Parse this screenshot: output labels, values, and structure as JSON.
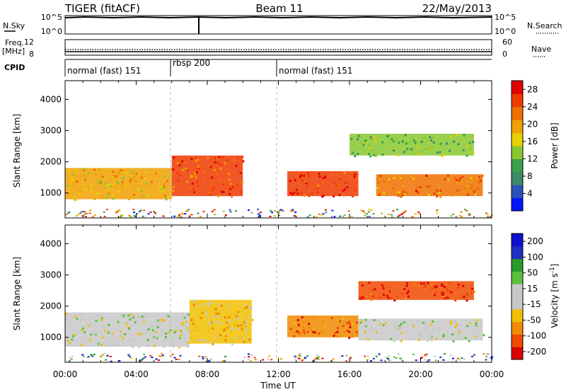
{
  "header": {
    "station": "TIGER (fitACF)",
    "beam": "Beam 11",
    "date": "22/May/2013"
  },
  "strips": {
    "nsky_label": "N.Sky",
    "nsky_ticks": [
      "10^5",
      "10^0"
    ],
    "nsearch_label": "N.Search",
    "nsearch_ticks": [
      "10^5",
      "10^0"
    ],
    "freq_label_1": "Freq.",
    "freq_label_2": "[MHz]",
    "freq_ticks": [
      "12",
      "8"
    ],
    "nave_label": "Nave",
    "nave_ticks": [
      "60",
      "0"
    ],
    "cpid_label": "CPID",
    "cpid_segments": [
      {
        "label": "normal (fast) 151",
        "start_hour": 0,
        "end_hour": 6
      },
      {
        "label": "rbsp 200",
        "start_hour": 6,
        "end_hour": 12
      },
      {
        "label": "normal (fast) 151",
        "start_hour": 12,
        "end_hour": 24
      }
    ]
  },
  "x_axis": {
    "label": "Time UT",
    "ticks": [
      "00:00",
      "04:00",
      "08:00",
      "12:00",
      "16:00",
      "20:00",
      "00:00"
    ],
    "range_hours": [
      0,
      24
    ]
  },
  "colors": {
    "power_scale": [
      "#0016ff",
      "#2a52b8",
      "#3a8a6a",
      "#3aa04a",
      "#8ac830",
      "#e8d000",
      "#f0a000",
      "#f07000",
      "#ee3a00",
      "#e00000"
    ],
    "velocity_scale": [
      "#e00000",
      "#f04a00",
      "#f08a00",
      "#f0c000",
      "#c8c8c8",
      "#c8c8c8",
      "#5ac040",
      "#2a9a2a",
      "#2030c0",
      "#1010d0"
    ]
  },
  "chart_data": [
    {
      "type": "heatmap",
      "panel": "power",
      "ylabel": "Slant Range [km]",
      "yticks": [
        1000,
        2000,
        3000,
        4000
      ],
      "ylim": [
        200,
        4600
      ],
      "xlim": [
        0,
        24
      ],
      "colorbar_label": "Power [dB]",
      "colorbar_ticks": [
        4,
        8,
        12,
        16,
        20,
        24,
        28
      ],
      "colorbar_range": [
        0,
        30
      ],
      "regions": [
        {
          "start_hour": 0.0,
          "end_hour": 6.0,
          "range_low": 800,
          "range_high": 1800,
          "power": 18
        },
        {
          "start_hour": 6.0,
          "end_hour": 10.0,
          "range_low": 900,
          "range_high": 2200,
          "power": 24
        },
        {
          "start_hour": 12.5,
          "end_hour": 16.5,
          "range_low": 900,
          "range_high": 1700,
          "power": 26
        },
        {
          "start_hour": 17.5,
          "end_hour": 23.5,
          "range_low": 900,
          "range_high": 1600,
          "power": 22
        },
        {
          "start_hour": 16.0,
          "end_hour": 23.0,
          "range_low": 2200,
          "range_high": 2900,
          "power": 12
        }
      ]
    },
    {
      "type": "heatmap",
      "panel": "velocity",
      "ylabel": "Slant Range [km]",
      "yticks": [
        1000,
        2000,
        3000,
        4000
      ],
      "ylim": [
        200,
        4600
      ],
      "xlim": [
        0,
        24
      ],
      "colorbar_label": "Velocity [m s^-1]",
      "colorbar_ticks": [
        200,
        100,
        50,
        15,
        -15,
        -50,
        -100,
        -200
      ],
      "colorbar_range": [
        -250,
        250
      ],
      "regions": [
        {
          "start_hour": 0.0,
          "end_hour": 7.0,
          "range_low": 700,
          "range_high": 1800,
          "velocity": 0
        },
        {
          "start_hour": 7.0,
          "end_hour": 10.5,
          "range_low": 800,
          "range_high": 2200,
          "velocity": -60
        },
        {
          "start_hour": 12.5,
          "end_hour": 16.5,
          "range_low": 1000,
          "range_high": 1700,
          "velocity": -150
        },
        {
          "start_hour": 16.5,
          "end_hour": 23.5,
          "range_low": 900,
          "range_high": 1600,
          "velocity": 0
        },
        {
          "start_hour": 16.5,
          "end_hour": 23.0,
          "range_low": 2200,
          "range_high": 2800,
          "velocity": -200
        }
      ]
    }
  ]
}
